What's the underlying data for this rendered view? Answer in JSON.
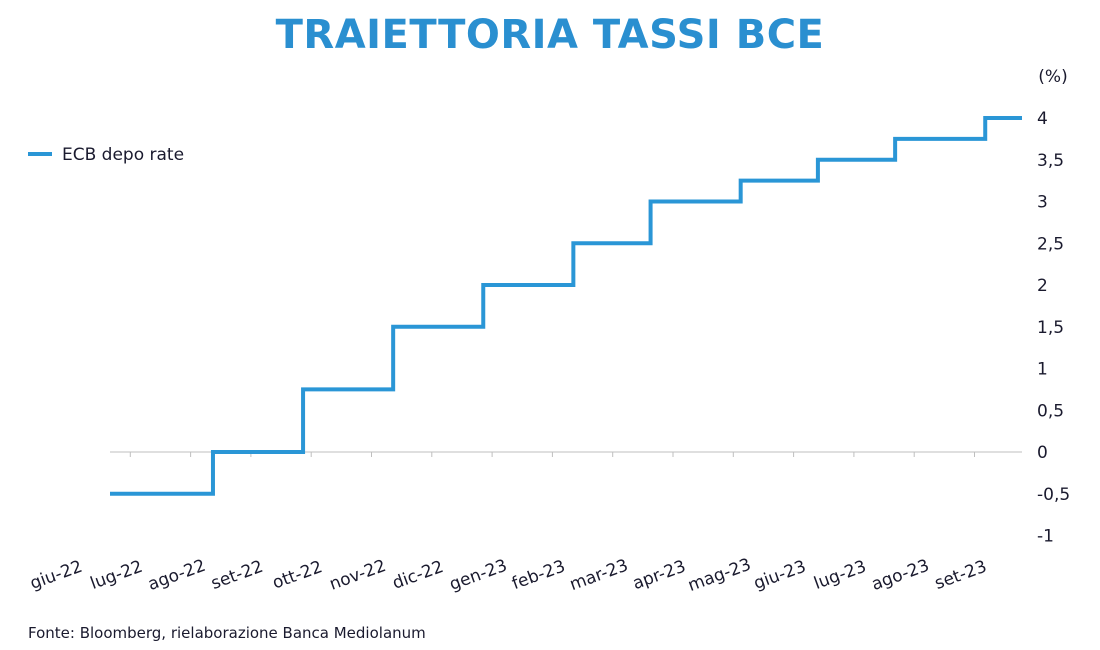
{
  "chart_data": {
    "type": "line",
    "step": true,
    "title": "TRAIETTORIA TASSI BCE",
    "unit_label": "(%)",
    "source": "Fonte: Bloomberg, rielaborazione Banca Mediolanum",
    "x_tick_labels": [
      "giu-22",
      "lug-22",
      "ago-22",
      "set-22",
      "ott-22",
      "nov-22",
      "dic-22",
      "gen-23",
      "feb-23",
      "mar-23",
      "apr-23",
      "mag-23",
      "giu-23",
      "lug-23",
      "ago-23",
      "set-23"
    ],
    "y_tick_labels": [
      "-1",
      "-0,5",
      "0",
      "0,5",
      "1",
      "1,5",
      "2",
      "2,5",
      "3",
      "3,5",
      "4"
    ],
    "y_ticks": [
      -1,
      -0.5,
      0,
      0.5,
      1,
      1.5,
      2,
      2.5,
      3,
      3.5,
      4
    ],
    "ylim": [
      -1,
      4
    ],
    "x_axis_at": 0,
    "y_axis_position": "right",
    "legend_position": "top-left",
    "grid": false,
    "color": "#2a96d6",
    "series": [
      {
        "name": "ECB depo rate",
        "x": [
          "2022-06-01",
          "2022-07-27",
          "2022-09-14",
          "2022-11-02",
          "2022-12-21",
          "2023-02-08",
          "2023-03-22",
          "2023-05-10",
          "2023-06-21",
          "2023-08-02",
          "2023-09-20",
          "2023-10-10"
        ],
        "values": [
          -0.5,
          0,
          0.75,
          1.5,
          2,
          2.5,
          3,
          3.25,
          3.5,
          3.75,
          4,
          4
        ]
      }
    ]
  }
}
